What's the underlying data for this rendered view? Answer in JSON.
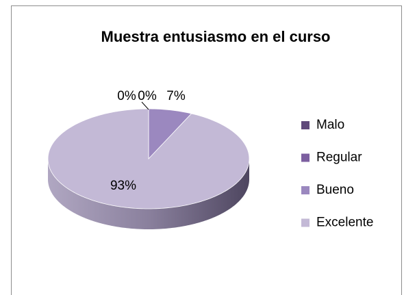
{
  "chart_data": {
    "type": "pie",
    "title": "Muestra entusiasmo en el curso",
    "categories": [
      "Malo",
      "Regular",
      "Bueno",
      "Excelente"
    ],
    "values": [
      0,
      0,
      7,
      93
    ],
    "value_labels": [
      "0%",
      "0%",
      "7%",
      "93%"
    ],
    "colors": [
      "#5f497a",
      "#7c5fa0",
      "#9b88bf",
      "#c3b9d6"
    ],
    "legend": "right"
  }
}
